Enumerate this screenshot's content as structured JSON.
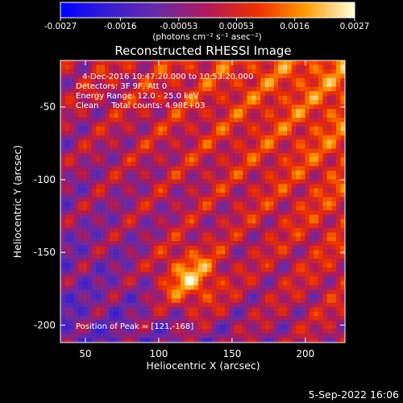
{
  "chart_data": {
    "type": "heatmap",
    "title": "Reconstructed RHESSI Image",
    "xlabel": "Heliocentric X (arcsec)",
    "ylabel": "Heliocentric Y (arcsec)",
    "xlim": [
      33,
      227
    ],
    "ylim": [
      -212,
      -18
    ],
    "xticks": [
      50,
      100,
      150,
      200
    ],
    "yticks": [
      -50,
      -100,
      -150,
      -200
    ],
    "colorbar": {
      "min": -0.0027,
      "max": 0.0027,
      "ticks": [
        "-0.0027",
        "-0.0016",
        "-0.00053",
        "0.00053",
        "0.0016",
        "0.0027"
      ],
      "tick_values": [
        -0.0027,
        -0.0016,
        -0.00053,
        0.00053,
        0.0016,
        0.0027
      ],
      "unit_label": "(photons cm⁻² s⁻¹ asec⁻²)"
    },
    "peak": {
      "x": 121,
      "y": -168
    },
    "annotations": {
      "time_range": "4-Dec-2016 10:47:20.000 to 10:53:20.000",
      "detectors": "Detectors: 3F 9F, Att 0",
      "energy": "Energy Range: 12.0 - 25.0 keV",
      "clean": "Clean     Total counts: 4.98E+03",
      "peak_label": "Position of Peak = [121,-168]"
    },
    "grid": false
  },
  "footer_date": "5-Sep-2022 16:06"
}
